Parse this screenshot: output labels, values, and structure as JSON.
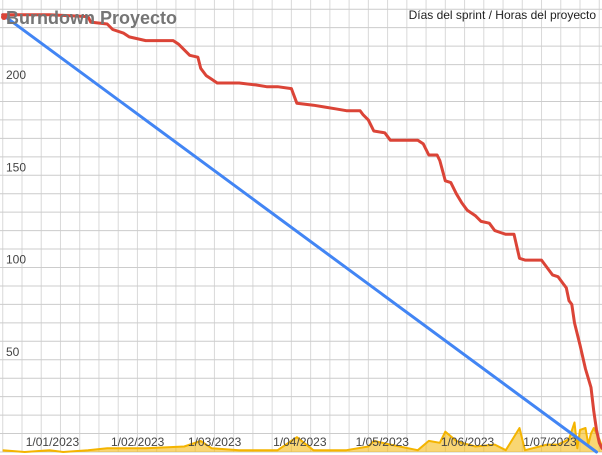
{
  "chart_data": {
    "type": "line",
    "title": "Burndown Proyecto",
    "subtitle": "Días del sprint / Horas del proyecto",
    "x_tick_labels": [
      "1/01/2023",
      "1/02/2023",
      "1/03/2023",
      "1/04/2023",
      "1/05/2023",
      "1/06/2023",
      "1/07/2023"
    ],
    "x_tick_dates": [
      "2023-01-01",
      "2023-02-01",
      "2023-03-01",
      "2023-04-01",
      "2023-05-01",
      "2023-06-01",
      "2023-07-01"
    ],
    "xlim": [
      "2022-12-23",
      "2023-07-30"
    ],
    "y_ticks": [
      50,
      100,
      150,
      200
    ],
    "ylim": [
      0,
      245
    ],
    "grid": true,
    "series": [
      {
        "color": "#4285f4",
        "style": "ideal",
        "points": [
          [
            "2022-12-24",
            237
          ],
          [
            "2023-07-28",
            0
          ]
        ]
      },
      {
        "color": "#db4437",
        "style": "actual",
        "points": [
          [
            "2022-12-24",
            237
          ],
          [
            "2023-01-10",
            237
          ],
          [
            "2023-01-24",
            236
          ],
          [
            "2023-01-25",
            233
          ],
          [
            "2023-01-31",
            232
          ],
          [
            "2023-02-02",
            229
          ],
          [
            "2023-02-06",
            227
          ],
          [
            "2023-02-08",
            225
          ],
          [
            "2023-02-14",
            223
          ],
          [
            "2023-02-17",
            223
          ],
          [
            "2023-02-20",
            223
          ],
          [
            "2023-02-21",
            223
          ],
          [
            "2023-02-24",
            223
          ],
          [
            "2023-02-26",
            221
          ],
          [
            "2023-02-28",
            218
          ],
          [
            "2023-03-02",
            215
          ],
          [
            "2023-03-05",
            214
          ],
          [
            "2023-03-06",
            208
          ],
          [
            "2023-03-08",
            204
          ],
          [
            "2023-03-10",
            202
          ],
          [
            "2023-03-12",
            200
          ],
          [
            "2023-03-20",
            200
          ],
          [
            "2023-03-26",
            199
          ],
          [
            "2023-03-30",
            198
          ],
          [
            "2023-04-03",
            198
          ],
          [
            "2023-04-08",
            197
          ],
          [
            "2023-04-10",
            189
          ],
          [
            "2023-04-16",
            188
          ],
          [
            "2023-04-20",
            187
          ],
          [
            "2023-04-24",
            186
          ],
          [
            "2023-04-28",
            185
          ],
          [
            "2023-05-03",
            185
          ],
          [
            "2023-05-04",
            183
          ],
          [
            "2023-05-06",
            180
          ],
          [
            "2023-05-08",
            174
          ],
          [
            "2023-05-12",
            173
          ],
          [
            "2023-05-14",
            169
          ],
          [
            "2023-05-24",
            169
          ],
          [
            "2023-05-26",
            167
          ],
          [
            "2023-05-28",
            161
          ],
          [
            "2023-05-31",
            161
          ],
          [
            "2023-06-01",
            158
          ],
          [
            "2023-06-03",
            147
          ],
          [
            "2023-06-05",
            146
          ],
          [
            "2023-06-07",
            140
          ],
          [
            "2023-06-09",
            135
          ],
          [
            "2023-06-11",
            131
          ],
          [
            "2023-06-14",
            128
          ],
          [
            "2023-06-16",
            125
          ],
          [
            "2023-06-19",
            124
          ],
          [
            "2023-06-21",
            120
          ],
          [
            "2023-06-23",
            119
          ],
          [
            "2023-06-25",
            118
          ],
          [
            "2023-06-28",
            118
          ],
          [
            "2023-06-30",
            105
          ],
          [
            "2023-07-02",
            104
          ],
          [
            "2023-07-08",
            104
          ],
          [
            "2023-07-10",
            100
          ],
          [
            "2023-07-12",
            96
          ],
          [
            "2023-07-14",
            95
          ],
          [
            "2023-07-16",
            91
          ],
          [
            "2023-07-17",
            89
          ],
          [
            "2023-07-18",
            82
          ],
          [
            "2023-07-19",
            80
          ],
          [
            "2023-07-20",
            70
          ],
          [
            "2023-07-22",
            58
          ],
          [
            "2023-07-24",
            45
          ],
          [
            "2023-07-26",
            35
          ],
          [
            "2023-07-27",
            22
          ],
          [
            "2023-07-28",
            12
          ],
          [
            "2023-07-29",
            5
          ],
          [
            "2023-07-30",
            2
          ]
        ]
      },
      {
        "color": "#f4b400",
        "style": "daily",
        "points": [
          [
            "2022-12-24",
            1
          ],
          [
            "2023-01-01",
            0
          ],
          [
            "2023-01-10",
            1
          ],
          [
            "2023-01-15",
            0
          ],
          [
            "2023-01-24",
            1
          ],
          [
            "2023-01-31",
            2
          ],
          [
            "2023-02-06",
            2
          ],
          [
            "2023-02-14",
            2
          ],
          [
            "2023-02-28",
            3
          ],
          [
            "2023-03-06",
            6
          ],
          [
            "2023-03-10",
            2
          ],
          [
            "2023-03-20",
            1
          ],
          [
            "2023-04-03",
            1
          ],
          [
            "2023-04-10",
            8
          ],
          [
            "2023-04-16",
            1
          ],
          [
            "2023-04-28",
            1
          ],
          [
            "2023-05-06",
            3
          ],
          [
            "2023-05-08",
            6
          ],
          [
            "2023-05-14",
            4
          ],
          [
            "2023-05-24",
            1
          ],
          [
            "2023-05-28",
            6
          ],
          [
            "2023-06-01",
            5
          ],
          [
            "2023-06-03",
            11
          ],
          [
            "2023-06-07",
            6
          ],
          [
            "2023-06-09",
            5
          ],
          [
            "2023-06-14",
            3
          ],
          [
            "2023-06-21",
            4
          ],
          [
            "2023-06-25",
            1
          ],
          [
            "2023-06-30",
            13
          ],
          [
            "2023-07-02",
            1
          ],
          [
            "2023-07-10",
            4
          ],
          [
            "2023-07-14",
            4
          ],
          [
            "2023-07-18",
            7
          ],
          [
            "2023-07-20",
            16
          ],
          [
            "2023-07-21",
            2
          ],
          [
            "2023-07-22",
            12
          ],
          [
            "2023-07-24",
            13
          ],
          [
            "2023-07-25",
            4
          ],
          [
            "2023-07-26",
            10
          ],
          [
            "2023-07-27",
            13
          ],
          [
            "2023-07-28",
            10
          ],
          [
            "2023-07-29",
            7
          ],
          [
            "2023-07-30",
            3
          ]
        ]
      }
    ]
  }
}
